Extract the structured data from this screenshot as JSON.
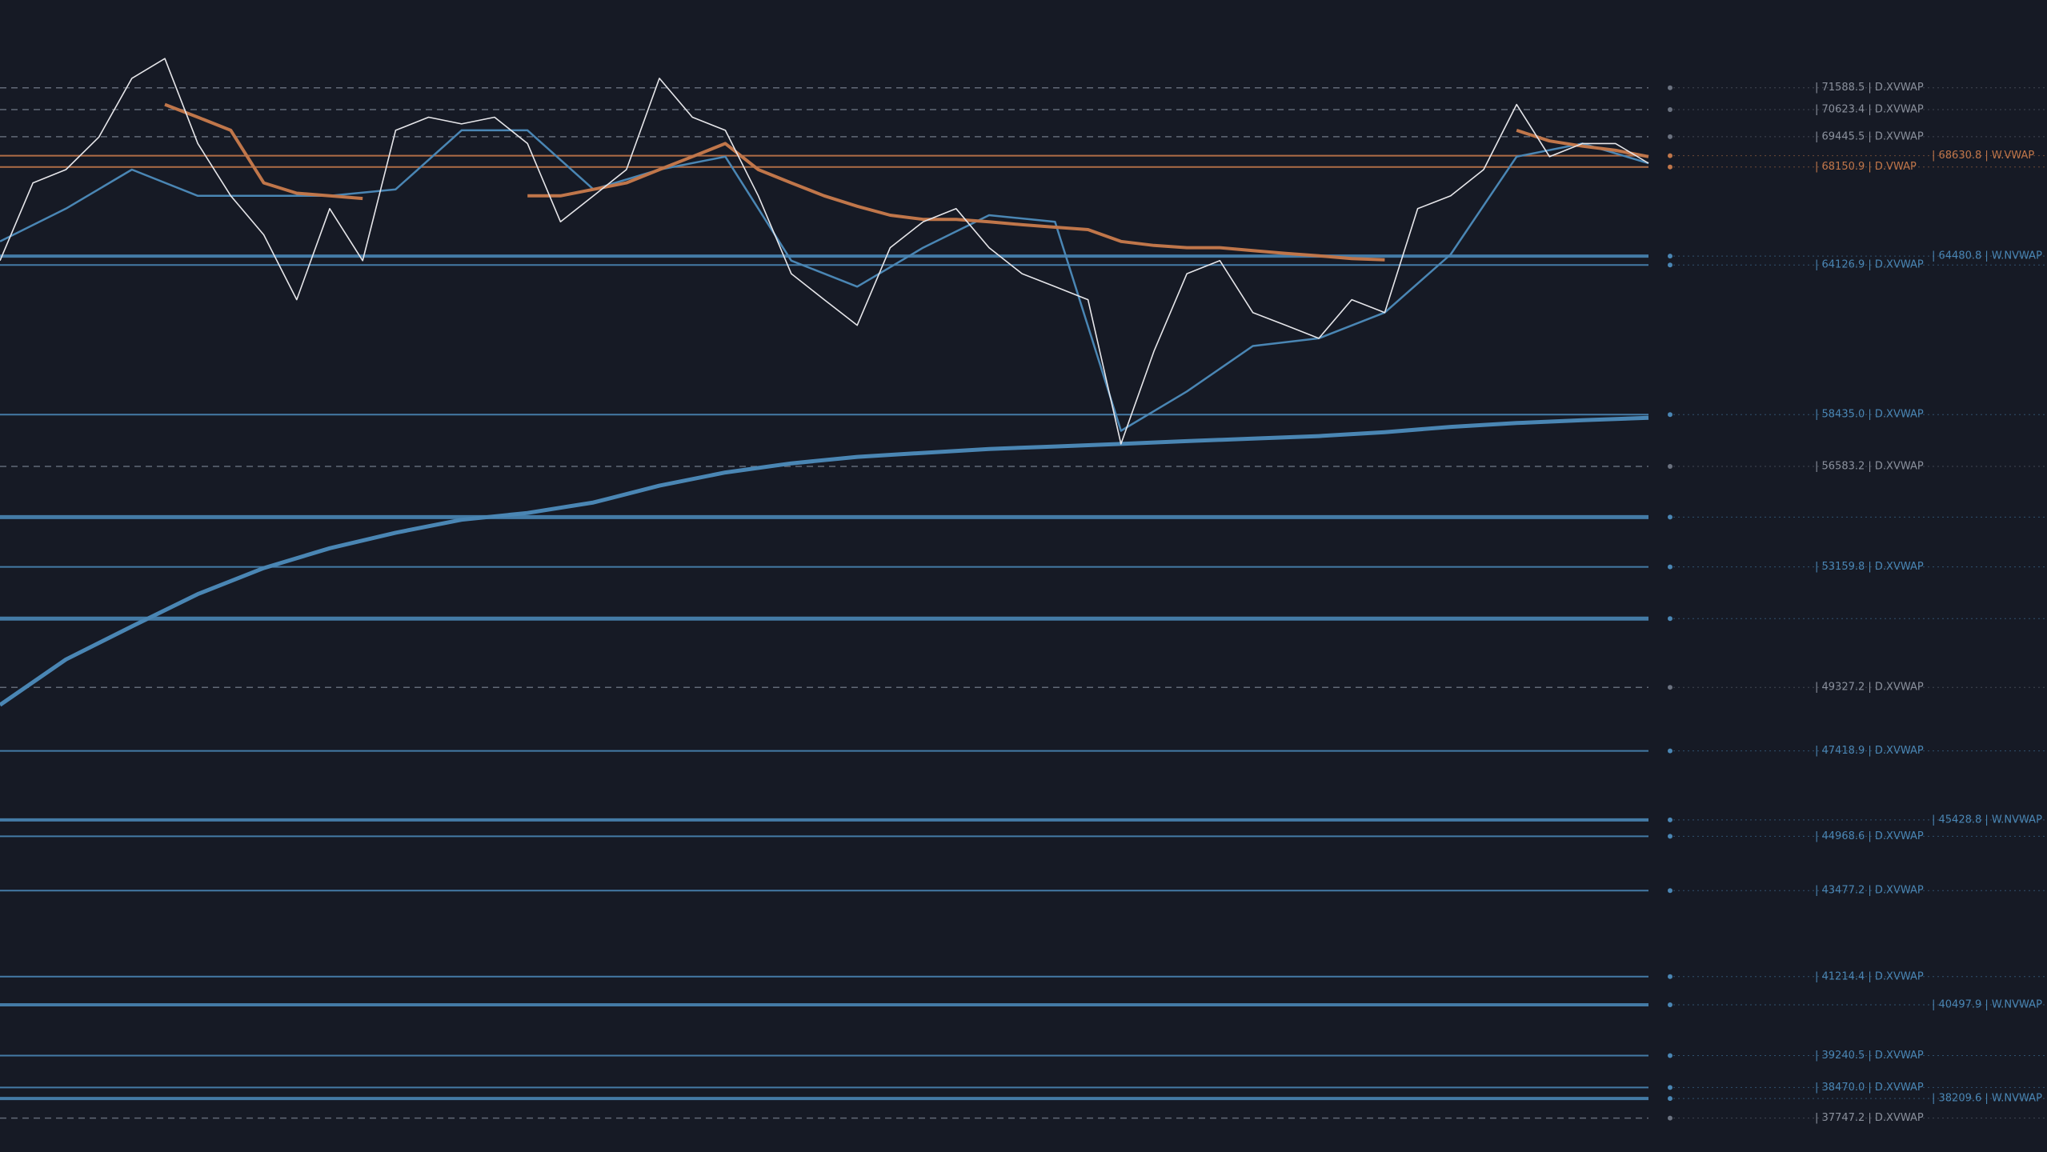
{
  "chart_data": {
    "type": "line",
    "log": true,
    "ylim": [
      36960,
      75600
    ],
    "background": "#161a25",
    "series": [
      {
        "color": "#4a86b4",
        "width": 5,
        "values": [
          48790,
          50190,
          51230,
          52270,
          53120,
          53780,
          54300,
          54740,
          54970,
          55330,
          55910,
          56370,
          56690,
          56920,
          57060,
          57200,
          57290,
          57380,
          57480,
          57570,
          57660,
          57800,
          57990,
          58130,
          58230,
          58320
        ]
      },
      {
        "color": "#4a86b4",
        "width": 2.5,
        "values": [
          65070,
          66410,
          68040,
          66940,
          66940,
          66940,
          67210,
          69720,
          69720,
          67210,
          68040,
          68590,
          64300,
          63270,
          64820,
          66140,
          65870,
          57850,
          59280,
          60980,
          61270,
          62260,
          64550,
          68590,
          69150,
          68310
        ]
      },
      {
        "color": "#c0764a",
        "width": 4,
        "values": [
          null,
          null,
          null,
          null,
          null,
          70850,
          70290,
          69720,
          67480,
          67050,
          66940,
          66830,
          null,
          null,
          null,
          null,
          66940,
          66940,
          67210,
          67480,
          68040,
          68590,
          69150,
          68040,
          67480,
          66940,
          66510,
          66140,
          65970,
          65970,
          65870,
          65750,
          65650,
          65550,
          65070,
          64910,
          64820,
          64820,
          64700,
          64590,
          64490,
          64380,
          64330,
          null,
          null,
          null,
          69720,
          69260,
          69040,
          68860,
          68590
        ]
      },
      {
        "color": "#e6e6ea",
        "width": 1.6,
        "values": [
          64300,
          67480,
          68040,
          69430,
          72010,
          72900,
          69150,
          66940,
          65340,
          62760,
          66410,
          64300,
          69720,
          70290,
          70000,
          70290,
          69150,
          65870,
          66940,
          68040,
          72010,
          70290,
          69720,
          66940,
          63780,
          62760,
          61770,
          64820,
          65870,
          66410,
          64820,
          63780,
          63270,
          62760,
          57380,
          60780,
          63780,
          64300,
          62260,
          61770,
          61270,
          62760,
          62260,
          66410,
          66940,
          68040,
          70850,
          68590,
          69150,
          69150,
          68310
        ]
      }
    ],
    "levels": [
      {
        "value": 71588.5,
        "label": "| 71588.5 | D.XVWAP",
        "color": "#6b7280",
        "dashed": true,
        "width": 1.5
      },
      {
        "value": 70623.4,
        "label": "| 70623.4 | D.XVWAP",
        "color": "#6b7280",
        "dashed": true,
        "width": 1.5
      },
      {
        "value": 69445.5,
        "label": "| 69445.5 | D.XVWAP",
        "color": "#6b7280",
        "dashed": true,
        "width": 1.5
      },
      {
        "value": 68630.8,
        "label": "| 68630.8 | W.VWAP",
        "color": "#c0764a",
        "dashed": false,
        "width": 2
      },
      {
        "value": 68150.9,
        "label": "| 68150.9 | D.VWAP",
        "color": "#c0764a",
        "dashed": false,
        "width": 2
      },
      {
        "value": 64480.8,
        "label": "| 64480.8 | W.NVWAP",
        "color": "#4a86b4",
        "dashed": false,
        "width": 4
      },
      {
        "value": 64126.9,
        "label": "| 64126.9 | D.XVWAP",
        "color": "#4a86b4",
        "dashed": false,
        "width": 2
      },
      {
        "value": 58435.0,
        "label": "| 58435.0 | D.XVWAP",
        "color": "#4a86b4",
        "dashed": false,
        "width": 2
      },
      {
        "value": 56583.2,
        "label": "| 56583.2 | D.XVWAP",
        "color": "#6b7280",
        "dashed": true,
        "width": 1.5
      },
      {
        "value": 54830,
        "label": null,
        "color": "#4a86b4",
        "dashed": false,
        "width": 5
      },
      {
        "value": 53159.8,
        "label": "| 53159.8 | D.XVWAP",
        "color": "#4a86b4",
        "dashed": false,
        "width": 2
      },
      {
        "value": 51480,
        "label": null,
        "color": "#4a86b4",
        "dashed": false,
        "width": 5
      },
      {
        "value": 49327.2,
        "label": "| 49327.2 | D.XVWAP",
        "color": "#6b7280",
        "dashed": true,
        "width": 1.5
      },
      {
        "value": 47418.9,
        "label": "| 47418.9 | D.XVWAP",
        "color": "#4a86b4",
        "dashed": false,
        "width": 2
      },
      {
        "value": 45428.8,
        "label": "| 45428.8 | W.NVWAP",
        "color": "#4a86b4",
        "dashed": false,
        "width": 4
      },
      {
        "value": 44968.6,
        "label": "| 44968.6 | D.XVWAP",
        "color": "#4a86b4",
        "dashed": false,
        "width": 2
      },
      {
        "value": 43477.2,
        "label": "| 43477.2 | D.XVWAP",
        "color": "#4a86b4",
        "dashed": false,
        "width": 2
      },
      {
        "value": 41214.4,
        "label": "| 41214.4 | D.XVWAP",
        "color": "#4a86b4",
        "dashed": false,
        "width": 2
      },
      {
        "value": 40497.9,
        "label": "| 40497.9 | W.NVWAP",
        "color": "#4a86b4",
        "dashed": false,
        "width": 4
      },
      {
        "value": 39240.5,
        "label": "| 39240.5 | D.XVWAP",
        "color": "#4a86b4",
        "dashed": false,
        "width": 2
      },
      {
        "value": 38470.0,
        "label": "| 38470.0 | D.XVWAP",
        "color": "#4a86b4",
        "dashed": false,
        "width": 2
      },
      {
        "value": 38209.6,
        "label": "| 38209.6 | W.NVWAP",
        "color": "#4a86b4",
        "dashed": false,
        "width": 4
      },
      {
        "value": 37747.2,
        "label": "| 37747.2 | D.XVWAP",
        "color": "#6b7280",
        "dashed": true,
        "width": 1.5
      }
    ]
  }
}
